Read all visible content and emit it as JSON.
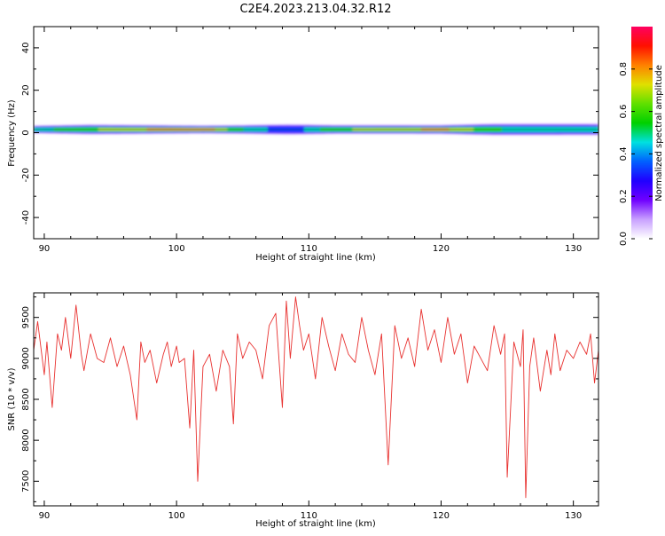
{
  "title": "C2E4.2023.213.04.32.R12",
  "chart_data": [
    {
      "type": "heatmap",
      "xlabel": "Height of straight line (km)",
      "ylabel": "Frequency (Hz)",
      "xlim": [
        89.2,
        131.9
      ],
      "ylim": [
        -50,
        50
      ],
      "xticks": [
        90,
        100,
        110,
        120,
        130
      ],
      "yticks": [
        -40,
        -20,
        0,
        20,
        40
      ],
      "grid": false,
      "colorbar": {
        "label": "Normalized spectral amplitude",
        "range": [
          0,
          1
        ],
        "ticks": [
          0.0,
          0.2,
          0.4,
          0.6,
          0.8
        ],
        "colormap": [
          "#ffffff",
          "#c8a0ff",
          "#7000ff",
          "#2000ff",
          "#0060ff",
          "#00e0e0",
          "#00d000",
          "#60e000",
          "#e0e000",
          "#ff8000",
          "#ff1000",
          "#ff0060"
        ]
      },
      "band": {
        "center_hz": 1.5,
        "nodes": [
          {
            "x": 89.5,
            "width_hz": 3.0,
            "peak": 0.55
          },
          {
            "x": 93.5,
            "width_hz": 4.0,
            "peak": 0.7
          },
          {
            "x": 98.0,
            "width_hz": 3.5,
            "peak": 0.85
          },
          {
            "x": 102.0,
            "width_hz": 3.0,
            "peak": 0.95
          },
          {
            "x": 105.0,
            "width_hz": 3.5,
            "peak": 0.6
          },
          {
            "x": 108.5,
            "width_hz": 4.5,
            "peak": 0.4
          },
          {
            "x": 112.0,
            "width_hz": 3.5,
            "peak": 0.7
          },
          {
            "x": 116.0,
            "width_hz": 3.5,
            "peak": 0.75
          },
          {
            "x": 120.0,
            "width_hz": 3.5,
            "peak": 0.9
          },
          {
            "x": 124.0,
            "width_hz": 5.0,
            "peak": 0.6
          },
          {
            "x": 128.0,
            "width_hz": 5.0,
            "peak": 0.55
          },
          {
            "x": 131.9,
            "width_hz": 5.0,
            "peak": 0.5
          }
        ]
      }
    },
    {
      "type": "line",
      "xlabel": "Height of straight line (km)",
      "ylabel": "SNR (10 * v/v)",
      "xlim": [
        89.2,
        131.9
      ],
      "ylim": [
        7200,
        9800
      ],
      "xticks": [
        90,
        100,
        110,
        120,
        130
      ],
      "yticks": [
        7500,
        8000,
        8500,
        9000,
        9500
      ],
      "grid": false,
      "series": [
        {
          "color": "#e8312f",
          "x": [
            89.2,
            89.5,
            90.0,
            90.2,
            90.6,
            91.0,
            91.3,
            91.6,
            92.0,
            92.4,
            92.8,
            93.0,
            93.5,
            94.0,
            94.5,
            95.0,
            95.5,
            96.0,
            96.5,
            97.0,
            97.3,
            97.6,
            98.0,
            98.5,
            99.0,
            99.3,
            99.6,
            100.0,
            100.2,
            100.6,
            101.0,
            101.3,
            101.6,
            102.0,
            102.5,
            103.0,
            103.5,
            104.0,
            104.3,
            104.6,
            105.0,
            105.5,
            106.0,
            106.5,
            107.0,
            107.5,
            108.0,
            108.3,
            108.6,
            109.0,
            109.3,
            109.6,
            110.0,
            110.5,
            111.0,
            111.5,
            112.0,
            112.5,
            113.0,
            113.5,
            114.0,
            114.5,
            115.0,
            115.5,
            116.0,
            116.5,
            117.0,
            117.5,
            118.0,
            118.5,
            119.0,
            119.5,
            120.0,
            120.5,
            121.0,
            121.5,
            122.0,
            122.5,
            123.0,
            123.5,
            124.0,
            124.5,
            124.8,
            125.0,
            125.5,
            126.0,
            126.2,
            126.4,
            126.7,
            127.0,
            127.5,
            128.0,
            128.3,
            128.6,
            129.0,
            129.5,
            130.0,
            130.5,
            131.0,
            131.3,
            131.6,
            131.9
          ],
          "y": [
            9100,
            9450,
            8800,
            9200,
            8400,
            9300,
            9100,
            9500,
            9000,
            9650,
            9050,
            8850,
            9300,
            9000,
            8950,
            9250,
            8900,
            9150,
            8800,
            8250,
            9200,
            8950,
            9100,
            8700,
            9050,
            9200,
            8900,
            9150,
            8950,
            9000,
            8150,
            9100,
            7500,
            8900,
            9050,
            8600,
            9100,
            8900,
            8200,
            9300,
            9000,
            9200,
            9100,
            8750,
            9400,
            9550,
            8400,
            9700,
            9000,
            9750,
            9400,
            9100,
            9300,
            8750,
            9500,
            9150,
            8850,
            9300,
            9050,
            8950,
            9500,
            9100,
            8800,
            9300,
            7700,
            9400,
            9000,
            9250,
            8900,
            9600,
            9100,
            9350,
            8950,
            9500,
            9050,
            9300,
            8700,
            9150,
            9000,
            8850,
            9400,
            9050,
            9300,
            7550,
            9200,
            8900,
            9350,
            7300,
            8900,
            9250,
            8600,
            9100,
            8800,
            9300,
            8850,
            9100,
            9000,
            9200,
            9050,
            9300,
            8700,
            9100
          ]
        }
      ]
    }
  ]
}
